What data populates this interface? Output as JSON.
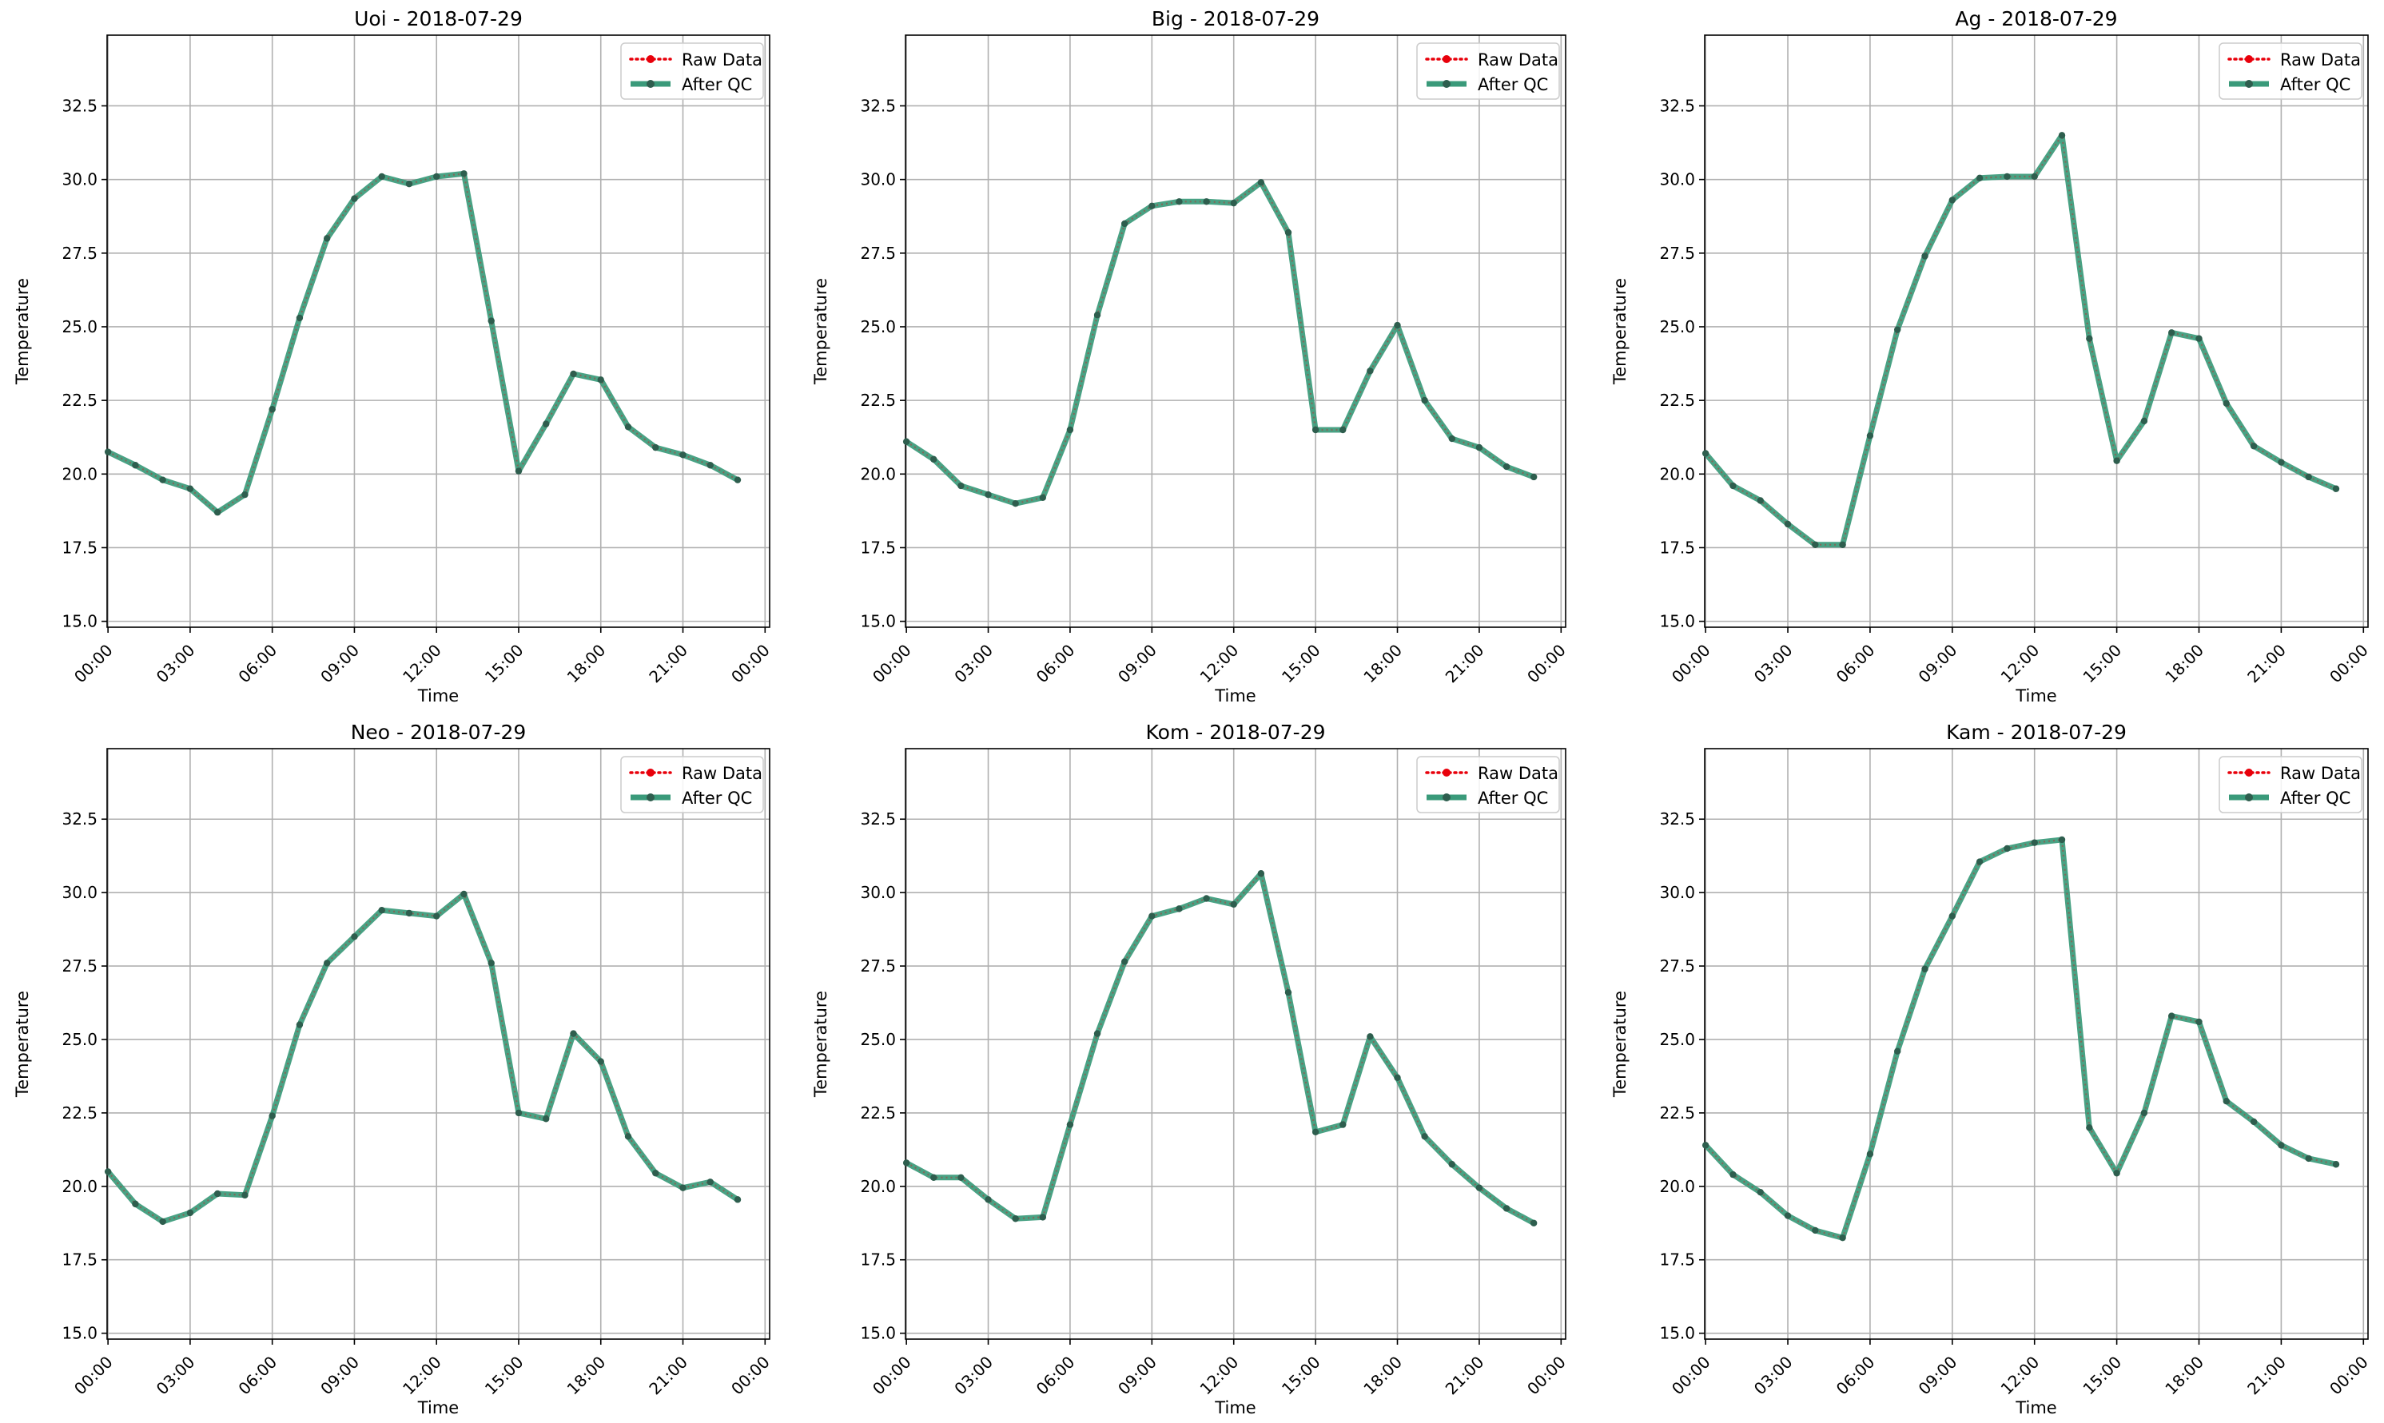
{
  "chart_data": [
    {
      "type": "line",
      "title": "Uoi - 2018-07-29",
      "xlabel": "Time",
      "ylabel": "Temperature",
      "ylim": [
        14.8,
        34.9
      ],
      "yticks": [
        "15.0",
        "17.5",
        "20.0",
        "22.5",
        "25.0",
        "27.5",
        "30.0",
        "32.5"
      ],
      "xticks": [
        "00:00",
        "03:00",
        "06:00",
        "09:00",
        "12:00",
        "15:00",
        "18:00",
        "21:00",
        "00:00"
      ],
      "grid": true,
      "legend_position": "top-right",
      "legend": [
        "Raw Data",
        "After QC"
      ],
      "values": [
        20.75,
        20.3,
        19.8,
        19.5,
        18.7,
        19.3,
        22.2,
        25.3,
        28.0,
        29.35,
        30.1,
        29.85,
        30.1,
        30.2,
        25.2,
        20.1,
        21.7,
        23.4,
        23.2,
        21.6,
        20.9,
        20.65,
        20.3,
        19.8
      ]
    },
    {
      "type": "line",
      "title": "Big - 2018-07-29",
      "xlabel": "Time",
      "ylabel": "Temperature",
      "ylim": [
        14.8,
        34.9
      ],
      "yticks": [
        "15.0",
        "17.5",
        "20.0",
        "22.5",
        "25.0",
        "27.5",
        "30.0",
        "32.5"
      ],
      "xticks": [
        "00:00",
        "03:00",
        "06:00",
        "09:00",
        "12:00",
        "15:00",
        "18:00",
        "21:00",
        "00:00"
      ],
      "grid": true,
      "legend_position": "top-right",
      "legend": [
        "Raw Data",
        "After QC"
      ],
      "values": [
        21.1,
        20.5,
        19.6,
        19.3,
        19.0,
        19.2,
        21.5,
        25.4,
        28.5,
        29.1,
        29.25,
        29.25,
        29.2,
        29.9,
        28.2,
        21.5,
        21.5,
        23.5,
        25.05,
        22.5,
        21.2,
        20.9,
        20.25,
        19.9
      ]
    },
    {
      "type": "line",
      "title": "Ag - 2018-07-29",
      "xlabel": "Time",
      "ylabel": "Temperature",
      "ylim": [
        14.8,
        34.9
      ],
      "yticks": [
        "15.0",
        "17.5",
        "20.0",
        "22.5",
        "25.0",
        "27.5",
        "30.0",
        "32.5"
      ],
      "xticks": [
        "00:00",
        "03:00",
        "06:00",
        "09:00",
        "12:00",
        "15:00",
        "18:00",
        "21:00",
        "00:00"
      ],
      "grid": true,
      "legend_position": "top-right",
      "legend": [
        "Raw Data",
        "After QC"
      ],
      "values": [
        20.7,
        19.6,
        19.1,
        18.3,
        17.6,
        17.6,
        21.3,
        24.9,
        27.4,
        29.3,
        30.05,
        30.1,
        30.1,
        31.5,
        24.6,
        20.45,
        21.8,
        24.8,
        24.6,
        22.4,
        20.95,
        20.4,
        19.9,
        19.5
      ]
    },
    {
      "type": "line",
      "title": "Neo - 2018-07-29",
      "xlabel": "Time",
      "ylabel": "Temperature",
      "ylim": [
        14.8,
        34.9
      ],
      "yticks": [
        "15.0",
        "17.5",
        "20.0",
        "22.5",
        "25.0",
        "27.5",
        "30.0",
        "32.5"
      ],
      "xticks": [
        "00:00",
        "03:00",
        "06:00",
        "09:00",
        "12:00",
        "15:00",
        "18:00",
        "21:00",
        "00:00"
      ],
      "grid": true,
      "legend_position": "top-right",
      "legend": [
        "Raw Data",
        "After QC"
      ],
      "values": [
        20.5,
        19.4,
        18.8,
        19.1,
        19.75,
        19.7,
        22.4,
        25.5,
        27.6,
        28.5,
        29.4,
        29.3,
        29.2,
        29.95,
        27.6,
        22.5,
        22.3,
        25.2,
        24.25,
        21.7,
        20.45,
        19.95,
        20.15,
        19.55
      ]
    },
    {
      "type": "line",
      "title": "Kom - 2018-07-29",
      "xlabel": "Time",
      "ylabel": "Temperature",
      "ylim": [
        14.8,
        34.9
      ],
      "yticks": [
        "15.0",
        "17.5",
        "20.0",
        "22.5",
        "25.0",
        "27.5",
        "30.0",
        "32.5"
      ],
      "xticks": [
        "00:00",
        "03:00",
        "06:00",
        "09:00",
        "12:00",
        "15:00",
        "18:00",
        "21:00",
        "00:00"
      ],
      "grid": true,
      "legend_position": "top-right",
      "legend": [
        "Raw Data",
        "After QC"
      ],
      "values": [
        20.8,
        20.3,
        20.3,
        19.55,
        18.9,
        18.95,
        22.1,
        25.2,
        27.65,
        29.2,
        29.45,
        29.8,
        29.6,
        30.65,
        26.6,
        21.85,
        22.1,
        25.1,
        23.7,
        21.7,
        20.75,
        19.95,
        19.25,
        18.75
      ]
    },
    {
      "type": "line",
      "title": "Kam - 2018-07-29",
      "xlabel": "Time",
      "ylabel": "Temperature",
      "ylim": [
        14.8,
        34.9
      ],
      "yticks": [
        "15.0",
        "17.5",
        "20.0",
        "22.5",
        "25.0",
        "27.5",
        "30.0",
        "32.5"
      ],
      "xticks": [
        "00:00",
        "03:00",
        "06:00",
        "09:00",
        "12:00",
        "15:00",
        "18:00",
        "21:00",
        "00:00"
      ],
      "grid": true,
      "legend_position": "top-right",
      "legend": [
        "Raw Data",
        "After QC"
      ],
      "values": [
        21.4,
        20.4,
        19.8,
        19.0,
        18.5,
        18.25,
        21.1,
        24.6,
        27.4,
        29.2,
        31.05,
        31.5,
        31.7,
        31.8,
        22.0,
        20.45,
        22.5,
        25.8,
        25.6,
        22.9,
        22.2,
        21.4,
        20.95,
        20.75
      ]
    }
  ],
  "colors": {
    "raw": "#e8000b",
    "qc_line": "#3a9a7a",
    "marker": "#2e5e4e",
    "grid": "#b0b0b0"
  }
}
